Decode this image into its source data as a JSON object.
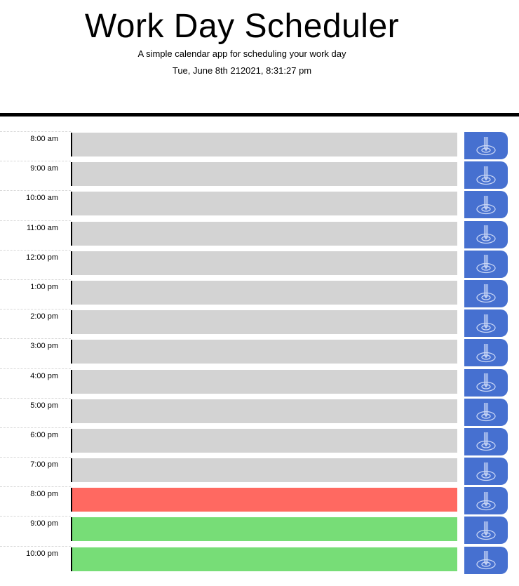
{
  "header": {
    "title": "Work Day Scheduler",
    "subtitle": "A simple calendar app for scheduling your work day",
    "datetime": "Tue, June 8th 212021, 8:31:27 pm"
  },
  "colors": {
    "past": "#d3d3d3",
    "present": "#ff6961",
    "future": "#77dd77",
    "save_button": "#4670d0"
  },
  "save_icon": "save-pin-icon",
  "time_blocks": [
    {
      "hour": "8:00 am",
      "text": "",
      "state": "past"
    },
    {
      "hour": "9:00 am",
      "text": "",
      "state": "past"
    },
    {
      "hour": "10:00 am",
      "text": "",
      "state": "past"
    },
    {
      "hour": "11:00 am",
      "text": "",
      "state": "past"
    },
    {
      "hour": "12:00 pm",
      "text": "",
      "state": "past"
    },
    {
      "hour": "1:00 pm",
      "text": "",
      "state": "past"
    },
    {
      "hour": "2:00 pm",
      "text": "",
      "state": "past"
    },
    {
      "hour": "3:00 pm",
      "text": "",
      "state": "past"
    },
    {
      "hour": "4:00 pm",
      "text": "",
      "state": "past"
    },
    {
      "hour": "5:00 pm",
      "text": "",
      "state": "past"
    },
    {
      "hour": "6:00 pm",
      "text": "",
      "state": "past"
    },
    {
      "hour": "7:00 pm",
      "text": "",
      "state": "past"
    },
    {
      "hour": "8:00 pm",
      "text": "",
      "state": "present"
    },
    {
      "hour": "9:00 pm",
      "text": "",
      "state": "future"
    },
    {
      "hour": "10:00 pm",
      "text": "",
      "state": "future"
    }
  ]
}
